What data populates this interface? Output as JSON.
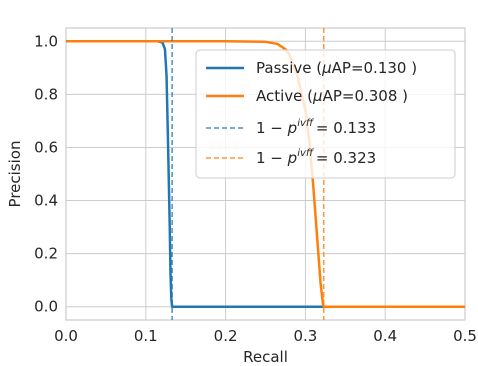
{
  "chart_data": {
    "type": "line",
    "xlabel": "Recall",
    "ylabel": "Precision",
    "xlim": [
      0.0,
      0.5
    ],
    "ylim": [
      -0.05,
      1.05
    ],
    "x_ticks": [
      "0.0",
      "0.1",
      "0.2",
      "0.3",
      "0.4",
      "0.5"
    ],
    "y_ticks": [
      "0.0",
      "0.2",
      "0.4",
      "0.6",
      "0.8",
      "1.0"
    ],
    "grid": true,
    "legend_position": "upper-right",
    "series": [
      {
        "name": "Passive (μAP=0.130 )",
        "color": "#1f77b4",
        "style": "solid",
        "x": [
          0.0,
          0.05,
          0.1,
          0.115,
          0.121,
          0.124,
          0.126,
          0.128,
          0.13,
          0.131,
          0.132,
          0.133,
          0.2,
          0.3,
          0.4,
          0.5
        ],
        "y": [
          1.0,
          1.0,
          1.0,
          1.0,
          0.995,
          0.97,
          0.87,
          0.6,
          0.3,
          0.12,
          0.03,
          0.0,
          0.0,
          0.0,
          0.0,
          0.0
        ]
      },
      {
        "name": "Active (μAP=0.308 )",
        "color": "#ff7f0e",
        "style": "solid",
        "x": [
          0.0,
          0.1,
          0.2,
          0.25,
          0.265,
          0.275,
          0.28,
          0.29,
          0.3,
          0.305,
          0.31,
          0.315,
          0.319,
          0.322,
          0.323,
          0.4,
          0.5
        ],
        "y": [
          1.0,
          1.0,
          1.0,
          0.998,
          0.99,
          0.97,
          0.95,
          0.87,
          0.74,
          0.62,
          0.45,
          0.25,
          0.09,
          0.01,
          0.0,
          0.0,
          0.0
        ]
      },
      {
        "name": "1 − p_f^ivf = 0.133",
        "color": "#1f77b4",
        "style": "dashed",
        "x_value": 0.133
      },
      {
        "name": "1 − p_f^ivf = 0.323",
        "color": "#ff7f0e",
        "style": "dashed",
        "x_value": 0.323
      }
    ]
  },
  "legend": {
    "passive": {
      "prefix": "Passive (",
      "mu": "μ",
      "suffix": "AP=0.130 )"
    },
    "active": {
      "prefix": "Active (",
      "mu": "μ",
      "suffix": "AP=0.308 )"
    },
    "passive_threshold": {
      "one_minus": "1 − ",
      "p": "p",
      "sup": "ivf",
      "sub": "f",
      "eq": " = 0.133"
    },
    "active_threshold": {
      "one_minus": "1 − ",
      "p": "p",
      "sup": "ivf",
      "sub": "f",
      "eq": " = 0.323"
    }
  }
}
